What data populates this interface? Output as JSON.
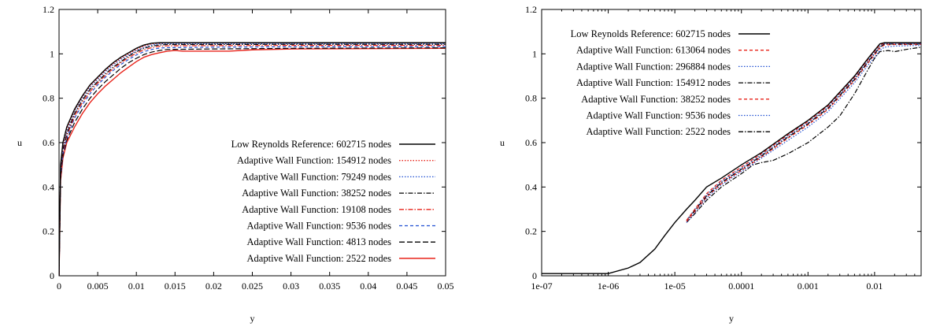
{
  "chart_data": [
    {
      "type": "line",
      "xlabel": "y",
      "ylabel": "u",
      "xlim": [
        0,
        0.05
      ],
      "ylim": [
        0,
        1.2
      ],
      "xscale": "linear",
      "grid": false,
      "legend_position": "bottom-right",
      "x_ticks": [
        "0",
        "0.005",
        "0.01",
        "0.015",
        "0.02",
        "0.025",
        "0.03",
        "0.035",
        "0.04",
        "0.045",
        "0.05"
      ],
      "y_ticks": [
        "0",
        "0.2",
        "0.4",
        "0.6",
        "0.8",
        "1",
        "1.2"
      ],
      "series": [
        {
          "name": "Low Reynolds Reference: 602715 nodes",
          "color": "#000000",
          "dash": "solid",
          "x": [
            0,
            0.0002,
            0.0005,
            0.001,
            0.002,
            0.003,
            0.004,
            0.005,
            0.006,
            0.007,
            0.008,
            0.009,
            0.01,
            0.011,
            0.012,
            0.013,
            0.014,
            0.02,
            0.03,
            0.05
          ],
          "y": [
            0.0,
            0.5,
            0.6,
            0.67,
            0.75,
            0.81,
            0.86,
            0.895,
            0.93,
            0.96,
            0.985,
            1.005,
            1.025,
            1.04,
            1.048,
            1.05,
            1.05,
            1.05,
            1.05,
            1.05
          ]
        },
        {
          "name": "Adaptive Wall Function: 154912 nodes",
          "color": "#e8231a",
          "dash": "dotted",
          "x": [
            0,
            0.0002,
            0.0005,
            0.001,
            0.002,
            0.003,
            0.004,
            0.005,
            0.006,
            0.007,
            0.008,
            0.009,
            0.01,
            0.011,
            0.012,
            0.013,
            0.014,
            0.02,
            0.03,
            0.05
          ],
          "y": [
            0.0,
            0.49,
            0.59,
            0.66,
            0.745,
            0.805,
            0.855,
            0.89,
            0.925,
            0.955,
            0.98,
            1.0,
            1.02,
            1.035,
            1.045,
            1.048,
            1.049,
            1.049,
            1.049,
            1.049
          ]
        },
        {
          "name": "Adaptive Wall Function: 79249 nodes",
          "color": "#1f4fd1",
          "dash": "dotted",
          "x": [
            0,
            0.0002,
            0.0005,
            0.001,
            0.002,
            0.003,
            0.004,
            0.005,
            0.006,
            0.007,
            0.008,
            0.009,
            0.01,
            0.011,
            0.012,
            0.013,
            0.014,
            0.02,
            0.03,
            0.05
          ],
          "y": [
            0.0,
            0.48,
            0.58,
            0.65,
            0.74,
            0.8,
            0.85,
            0.885,
            0.92,
            0.95,
            0.975,
            0.995,
            1.015,
            1.03,
            1.04,
            1.045,
            1.046,
            1.046,
            1.046,
            1.046
          ]
        },
        {
          "name": "Adaptive Wall Function: 38252 nodes",
          "color": "#000000",
          "dash": "dashdot",
          "x": [
            0,
            0.0002,
            0.0005,
            0.001,
            0.002,
            0.003,
            0.004,
            0.005,
            0.006,
            0.007,
            0.008,
            0.009,
            0.01,
            0.011,
            0.012,
            0.013,
            0.014,
            0.02,
            0.03,
            0.05
          ],
          "y": [
            0.0,
            0.47,
            0.57,
            0.64,
            0.73,
            0.79,
            0.84,
            0.875,
            0.91,
            0.94,
            0.965,
            0.99,
            1.01,
            1.025,
            1.035,
            1.04,
            1.042,
            1.042,
            1.043,
            1.043
          ]
        },
        {
          "name": "Adaptive Wall Function: 19108 nodes",
          "color": "#e8231a",
          "dash": "dashdot",
          "x": [
            0,
            0.0002,
            0.0005,
            0.001,
            0.002,
            0.003,
            0.004,
            0.005,
            0.006,
            0.007,
            0.008,
            0.009,
            0.01,
            0.011,
            0.012,
            0.013,
            0.014,
            0.02,
            0.03,
            0.05
          ],
          "y": [
            0.0,
            0.46,
            0.56,
            0.63,
            0.72,
            0.78,
            0.83,
            0.868,
            0.903,
            0.933,
            0.96,
            0.983,
            1.003,
            1.018,
            1.028,
            1.034,
            1.036,
            1.037,
            1.038,
            1.038
          ]
        },
        {
          "name": "Adaptive Wall Function: 9536 nodes",
          "color": "#1f4fd1",
          "dash": "dashed",
          "x": [
            0,
            0.0002,
            0.0005,
            0.001,
            0.002,
            0.003,
            0.004,
            0.005,
            0.006,
            0.007,
            0.008,
            0.009,
            0.01,
            0.011,
            0.012,
            0.013,
            0.014,
            0.02,
            0.03,
            0.05
          ],
          "y": [
            0.0,
            0.45,
            0.55,
            0.62,
            0.71,
            0.77,
            0.82,
            0.86,
            0.895,
            0.925,
            0.952,
            0.975,
            0.995,
            1.01,
            1.02,
            1.026,
            1.028,
            1.03,
            1.032,
            1.033
          ]
        },
        {
          "name": "Adaptive Wall Function: 4813 nodes",
          "color": "#000000",
          "dash": "longdash",
          "x": [
            0,
            0.0002,
            0.0005,
            0.001,
            0.002,
            0.003,
            0.004,
            0.005,
            0.006,
            0.007,
            0.008,
            0.009,
            0.01,
            0.011,
            0.012,
            0.013,
            0.014,
            0.02,
            0.03,
            0.05
          ],
          "y": [
            0.0,
            0.44,
            0.54,
            0.61,
            0.69,
            0.75,
            0.8,
            0.84,
            0.875,
            0.905,
            0.935,
            0.96,
            0.98,
            0.997,
            1.008,
            1.015,
            1.02,
            1.022,
            1.025,
            1.027
          ]
        },
        {
          "name": "Adaptive Wall Function: 2522 nodes",
          "color": "#e8231a",
          "dash": "solid",
          "x": [
            0,
            0.0002,
            0.0005,
            0.001,
            0.002,
            0.003,
            0.004,
            0.005,
            0.006,
            0.007,
            0.008,
            0.009,
            0.01,
            0.011,
            0.012,
            0.013,
            0.014,
            0.015,
            0.016,
            0.022,
            0.025,
            0.03,
            0.05
          ],
          "y": [
            0.0,
            0.43,
            0.53,
            0.6,
            0.67,
            0.73,
            0.78,
            0.82,
            0.855,
            0.885,
            0.915,
            0.94,
            0.965,
            0.985,
            0.997,
            1.005,
            1.012,
            1.015,
            1.012,
            1.012,
            1.018,
            1.022,
            1.025
          ]
        }
      ]
    },
    {
      "type": "line",
      "xlabel": "y",
      "ylabel": "u",
      "xlim": [
        1e-07,
        0.05
      ],
      "ylim": [
        0,
        1.2
      ],
      "xscale": "log",
      "grid": false,
      "legend_position": "top-left",
      "x_ticks": [
        "1e-07",
        "1e-06",
        "1e-05",
        "0.0001",
        "0.001",
        "0.01"
      ],
      "x_tick_values": [
        1e-07,
        1e-06,
        1e-05,
        0.0001,
        0.001,
        0.01
      ],
      "y_ticks": [
        "0",
        "0.2",
        "0.4",
        "0.6",
        "0.8",
        "1",
        "1.2"
      ],
      "series": [
        {
          "name": "Low Reynolds Reference: 602715 nodes",
          "color": "#000000",
          "dash": "solid",
          "x": [
            1e-07,
            3e-07,
            1e-06,
            2e-06,
            3e-06,
            5e-06,
            7e-06,
            1e-05,
            1.5e-05,
            2e-05,
            3e-05,
            5e-05,
            0.0001,
            0.0002,
            0.0005,
            0.001,
            0.002,
            0.005,
            0.008,
            0.012,
            0.014,
            0.02,
            0.03,
            0.05
          ],
          "y": [
            0.01,
            0.01,
            0.01,
            0.035,
            0.06,
            0.12,
            0.18,
            0.24,
            0.3,
            0.34,
            0.4,
            0.44,
            0.5,
            0.555,
            0.64,
            0.7,
            0.77,
            0.9,
            0.98,
            1.045,
            1.05,
            1.05,
            1.05,
            1.05
          ]
        },
        {
          "name": "Adaptive Wall Function: 613064 nodes",
          "color": "#e8231a",
          "dash": "dashed",
          "x": [
            1.5e-05,
            2e-05,
            3e-05,
            5e-05,
            0.0001,
            0.0002,
            0.0005,
            0.001,
            0.002,
            0.005,
            0.008,
            0.012,
            0.014,
            0.02,
            0.05
          ],
          "y": [
            0.25,
            0.3,
            0.37,
            0.43,
            0.49,
            0.55,
            0.635,
            0.695,
            0.765,
            0.895,
            0.975,
            1.04,
            1.048,
            1.048,
            1.048
          ]
        },
        {
          "name": "Adaptive Wall Function: 296884 nodes",
          "color": "#1f4fd1",
          "dash": "dotted",
          "x": [
            1.5e-05,
            2e-05,
            3e-05,
            5e-05,
            0.0001,
            0.0002,
            0.0005,
            0.001,
            0.002,
            0.005,
            0.008,
            0.012,
            0.014,
            0.02,
            0.05
          ],
          "y": [
            0.25,
            0.3,
            0.365,
            0.425,
            0.485,
            0.545,
            0.63,
            0.69,
            0.76,
            0.89,
            0.97,
            1.035,
            1.046,
            1.046,
            1.046
          ]
        },
        {
          "name": "Adaptive Wall Function: 154912 nodes",
          "color": "#000000",
          "dash": "dashdot",
          "x": [
            1.5e-05,
            2e-05,
            3e-05,
            5e-05,
            0.0001,
            0.0002,
            0.0005,
            0.001,
            0.002,
            0.005,
            0.008,
            0.012,
            0.014,
            0.02,
            0.05
          ],
          "y": [
            0.25,
            0.295,
            0.36,
            0.42,
            0.48,
            0.54,
            0.625,
            0.685,
            0.755,
            0.885,
            0.965,
            1.03,
            1.044,
            1.044,
            1.044
          ]
        },
        {
          "name": "Adaptive Wall Function: 38252 nodes",
          "color": "#e8231a",
          "dash": "dashed",
          "x": [
            1.5e-05,
            2e-05,
            3e-05,
            5e-05,
            0.0001,
            0.0002,
            0.0005,
            0.001,
            0.002,
            0.005,
            0.008,
            0.012,
            0.014,
            0.02,
            0.05
          ],
          "y": [
            0.245,
            0.29,
            0.355,
            0.415,
            0.475,
            0.535,
            0.62,
            0.68,
            0.75,
            0.88,
            0.96,
            1.025,
            1.04,
            1.042,
            1.042
          ]
        },
        {
          "name": "Adaptive Wall Function: 9536 nodes",
          "color": "#1f4fd1",
          "dash": "dotted",
          "x": [
            1.5e-05,
            2e-05,
            3e-05,
            5e-05,
            0.0001,
            0.0002,
            0.0005,
            0.001,
            0.002,
            0.005,
            0.008,
            0.012,
            0.014,
            0.02,
            0.05
          ],
          "y": [
            0.24,
            0.285,
            0.35,
            0.41,
            0.47,
            0.53,
            0.61,
            0.67,
            0.74,
            0.87,
            0.95,
            1.015,
            1.03,
            1.035,
            1.038
          ]
        },
        {
          "name": "Adaptive Wall Function: 2522 nodes",
          "color": "#000000",
          "dash": "dashdot",
          "x": [
            1.5e-05,
            2e-05,
            3e-05,
            5e-05,
            0.0001,
            0.00015,
            0.0002,
            0.0003,
            0.0005,
            0.001,
            0.002,
            0.003,
            0.005,
            0.008,
            0.01,
            0.012,
            0.016,
            0.02,
            0.03,
            0.05
          ],
          "y": [
            0.24,
            0.28,
            0.34,
            0.4,
            0.46,
            0.5,
            0.51,
            0.52,
            0.55,
            0.6,
            0.67,
            0.72,
            0.82,
            0.93,
            0.98,
            1.01,
            1.015,
            1.01,
            1.02,
            1.03
          ]
        }
      ]
    }
  ]
}
